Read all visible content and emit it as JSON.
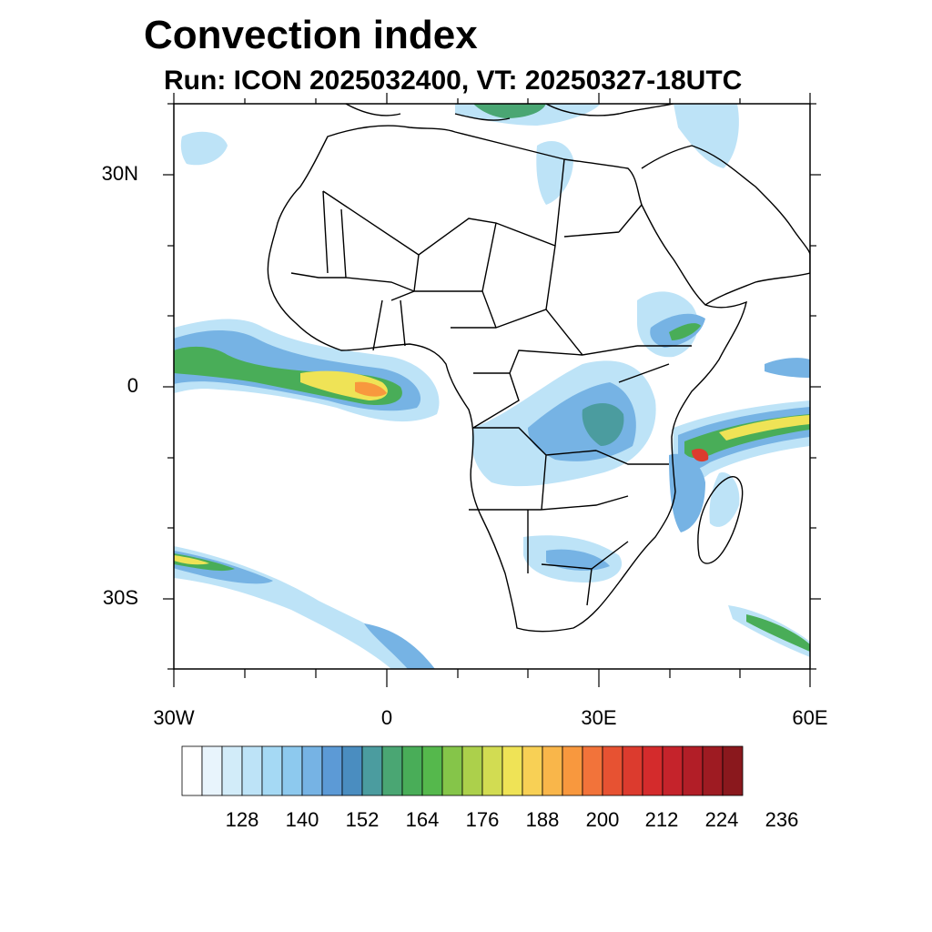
{
  "title": "Convection index",
  "subtitle": "Run: ICON 2025032400,  VT: 20250327-18UTC",
  "axes": {
    "lat_labels": [
      "30N",
      "0",
      "30S"
    ],
    "lon_labels": [
      "30W",
      "0",
      "30E",
      "60E"
    ]
  },
  "colorbar": {
    "labels": [
      "128",
      "140",
      "152",
      "164",
      "176",
      "188",
      "200",
      "212",
      "224",
      "236"
    ],
    "colors": [
      "#ffffff",
      "#e8f4fc",
      "#d2ecf9",
      "#bde3f7",
      "#a5d9f4",
      "#8dc9ee",
      "#76b3e4",
      "#5c9ad6",
      "#4a8dc0",
      "#4b9c9f",
      "#4aa673",
      "#49ad58",
      "#55b84c",
      "#85c549",
      "#acd04b",
      "#d2dc52",
      "#efe356",
      "#f8d055",
      "#f9b64a",
      "#f8983e",
      "#f2733a",
      "#e75232",
      "#dc3b2e",
      "#d42b2c",
      "#c5232b",
      "#b21e27",
      "#9e1b22",
      "#8a181d"
    ]
  },
  "map": {
    "extent": {
      "lon": [
        -30,
        60
      ],
      "lat": [
        -40,
        40
      ]
    },
    "convection_colors": {
      "light": "#bde3f7",
      "medium": "#76b3e4",
      "dark": "#5c9ad6",
      "teal": "#4b9c9f",
      "green": "#49ad58",
      "yellow": "#efe356",
      "orange": "#f8983e",
      "red": "#dc3b2e"
    }
  }
}
